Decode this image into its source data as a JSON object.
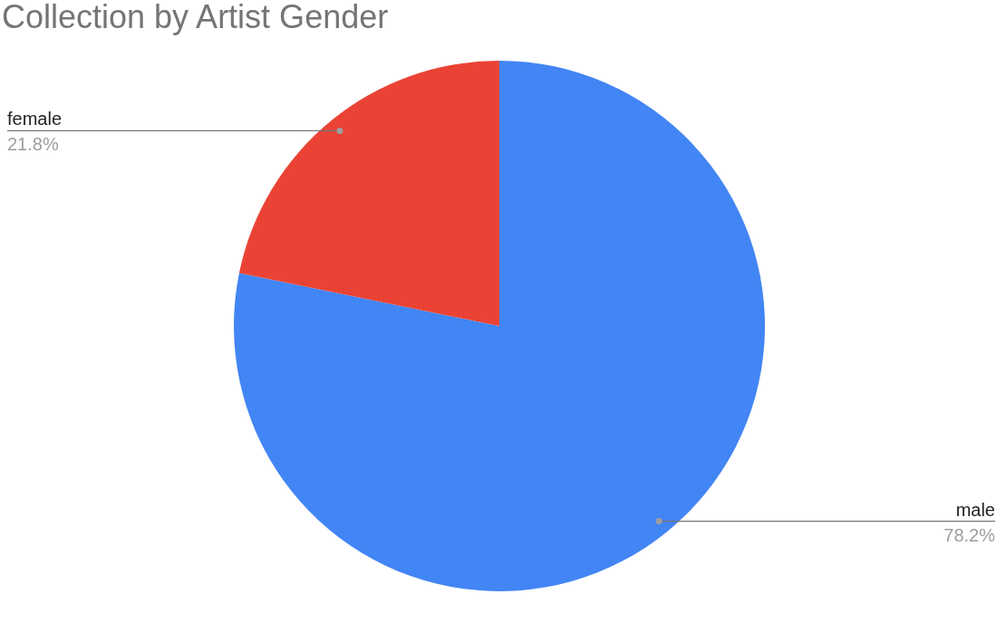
{
  "chart_data": {
    "type": "pie",
    "title": "Collection by Artist Gender",
    "categories": [
      "male",
      "female"
    ],
    "values": [
      78.2,
      21.8
    ],
    "value_labels": [
      "78.2%",
      "21.8%"
    ],
    "colors": [
      "#4285f4",
      "#ea4335"
    ],
    "legend": false
  }
}
